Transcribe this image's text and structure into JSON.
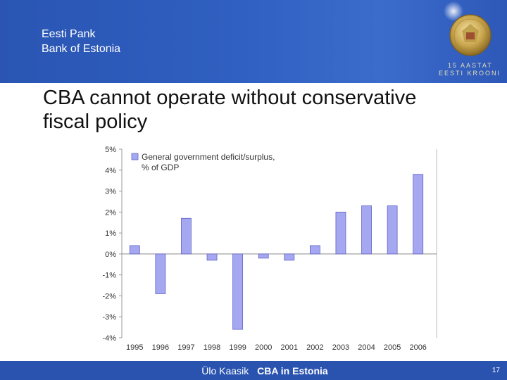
{
  "header": {
    "bank_name_et": "Eesti Pank",
    "bank_name_en": "Bank of Estonia",
    "anniversary_line1": "15 AASTAT",
    "anniversary_line2": "EESTI KROONI"
  },
  "slide": {
    "title": "CBA cannot operate without conservative fiscal policy"
  },
  "footer": {
    "author": "Ülo Kaasik",
    "topic": "CBA in Estonia",
    "page": "17"
  },
  "colors": {
    "header_blue": "#2f5fc0",
    "bar_fill": "#a5a8f0",
    "bar_stroke": "#5f63c6"
  },
  "chart_data": {
    "type": "bar",
    "title": "",
    "xlabel": "",
    "ylabel": "",
    "categories": [
      "1995",
      "1996",
      "1997",
      "1998",
      "1999",
      "2000",
      "2001",
      "2002",
      "2003",
      "2004",
      "2005",
      "2006"
    ],
    "series": [
      {
        "name": "General government deficit/surplus, % of GDP",
        "values": [
          0.4,
          -1.9,
          1.7,
          -0.3,
          -3.6,
          -0.2,
          -0.3,
          0.4,
          2.0,
          2.3,
          2.3,
          3.8
        ]
      }
    ],
    "ylim": [
      -4,
      5
    ],
    "yticks": [
      "5%",
      "4%",
      "3%",
      "2%",
      "1%",
      "0%",
      "-1%",
      "-2%",
      "-3%",
      "-4%"
    ],
    "ytick_values": [
      5,
      4,
      3,
      2,
      1,
      0,
      -1,
      -2,
      -3,
      -4
    ],
    "legend_position": "top-left",
    "grid": false
  }
}
